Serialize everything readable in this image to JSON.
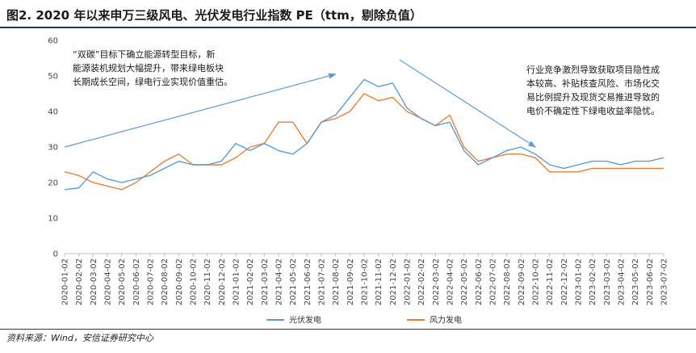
{
  "header": {
    "title": "图2. 2020 年以来申万三级风电、光伏发电行业指数 PE（ttm，剔除负值）"
  },
  "footer": {
    "source": "资料来源：Wind，安信证券研究中心"
  },
  "chart_data": {
    "type": "line",
    "title": "图2. 2020 年以来申万三级风电、光伏发电行业指数 PE（ttm，剔除负值）",
    "xlabel": "",
    "ylabel": "",
    "ylim": [
      0,
      60
    ],
    "yticks": [
      0,
      10,
      20,
      30,
      40,
      50,
      60
    ],
    "grid": false,
    "legend_position": "bottom",
    "x": [
      "2020-01-02",
      "2020-02-02",
      "2020-03-02",
      "2020-04-02",
      "2020-05-02",
      "2020-06-02",
      "2020-07-02",
      "2020-08-02",
      "2020-09-02",
      "2020-10-02",
      "2020-11-02",
      "2020-12-02",
      "2021-01-02",
      "2021-02-02",
      "2021-03-02",
      "2021-04-02",
      "2021-05-02",
      "2021-06-02",
      "2021-07-02",
      "2021-08-02",
      "2021-09-02",
      "2021-10-02",
      "2021-11-02",
      "2021-12-02",
      "2022-01-02",
      "2022-02-02",
      "2022-03-02",
      "2022-04-02",
      "2022-05-02",
      "2022-06-02",
      "2022-07-02",
      "2022-08-02",
      "2022-09-02",
      "2022-10-02",
      "2022-11-02",
      "2022-12-02",
      "2023-01-02",
      "2023-02-02",
      "2023-03-02",
      "2023-04-02",
      "2023-05-02",
      "2023-06-02",
      "2023-07-02"
    ],
    "series": [
      {
        "name": "光伏发电",
        "color": "#5b9bd5",
        "values": [
          18,
          18.5,
          23,
          21,
          20,
          21,
          22,
          24,
          26,
          25,
          25,
          26,
          31,
          29,
          31,
          29,
          28,
          31,
          37,
          39,
          44,
          49,
          47,
          48,
          41,
          38,
          36,
          37,
          29,
          25,
          27,
          29,
          30,
          28,
          25,
          24,
          25,
          26,
          26,
          25,
          26,
          26,
          27
        ]
      },
      {
        "name": "风力发电",
        "color": "#ed7d31",
        "values": [
          23,
          22,
          20,
          19,
          18,
          20,
          23,
          26,
          28,
          25,
          25,
          25,
          27,
          30,
          31,
          37,
          37,
          31,
          37,
          38,
          40,
          45,
          43,
          44,
          40,
          38,
          36,
          39,
          30,
          26,
          27,
          28,
          28,
          27,
          23,
          23,
          23,
          24,
          24,
          24,
          24,
          24,
          24
        ]
      }
    ],
    "annotations": [
      {
        "text": [
          "“双碳”目标下确立能源转型目标，新",
          "能源装机规划大幅提升，带来绿电板块",
          "长期成长空间，绿电行业实现价值重估。"
        ],
        "arrow": {
          "from": [
            0,
            30
          ],
          "to": [
            19,
            50.5
          ]
        }
      },
      {
        "text": [
          "行业竞争激烈导致获取项目隐性成",
          "本较高、补贴核查风险、市场化交",
          "易比例提升及现货交易推进导致的",
          "电价不确定性下绿电收益率隐忧。"
        ],
        "arrow": {
          "from": [
            23.5,
            54.5
          ],
          "to": [
            33,
            30
          ]
        }
      }
    ]
  }
}
